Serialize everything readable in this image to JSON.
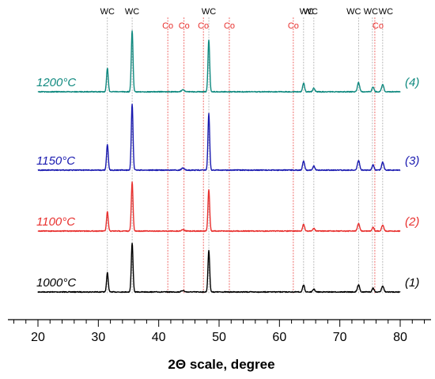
{
  "chart_data": {
    "type": "line",
    "xlabel": "2Θ scale, degree",
    "xlim": [
      18,
      84
    ],
    "x_ticks": [
      20,
      30,
      40,
      50,
      60,
      70,
      80
    ],
    "x_tick_labels": [
      "20",
      "30",
      "40",
      "50",
      "60",
      "70",
      "80"
    ],
    "grid": false,
    "colors": {
      "WC": "#000000",
      "Co": "#e8312f",
      "wc_line": "#a0a0a0",
      "co_line": "#e8312f"
    },
    "peak_markers": [
      {
        "label": "WC",
        "phase": "WC",
        "x": 31.5
      },
      {
        "label": "WC",
        "phase": "WC",
        "x": 35.6
      },
      {
        "label": "Co",
        "phase": "Co",
        "x": 41.5
      },
      {
        "label": "Co",
        "phase": "Co",
        "x": 44.2
      },
      {
        "label": "Co",
        "phase": "Co",
        "x": 47.4
      },
      {
        "label": "WC",
        "phase": "WC",
        "x": 48.3
      },
      {
        "label": "Co",
        "phase": "Co",
        "x": 51.7
      },
      {
        "label": "Co",
        "phase": "Co",
        "x": 62.3
      },
      {
        "label": "WC",
        "phase": "WC",
        "x": 64.0
      },
      {
        "label": "WC",
        "phase": "WC",
        "x": 65.7
      },
      {
        "label": "WC",
        "phase": "WC",
        "x": 73.1
      },
      {
        "label": "WC",
        "phase": "WC",
        "x": 75.4
      },
      {
        "label": "Co",
        "phase": "Co",
        "x": 75.8
      },
      {
        "label": "WC",
        "phase": "WC",
        "x": 77.1
      }
    ],
    "peaks": [
      {
        "x": 31.5,
        "w": 0.22,
        "rel": 0.39
      },
      {
        "x": 35.6,
        "w": 0.22,
        "rel": 1.0
      },
      {
        "x": 44.0,
        "w": 0.35,
        "rel": 0.03
      },
      {
        "x": 48.3,
        "w": 0.22,
        "rel": 0.85
      },
      {
        "x": 64.0,
        "w": 0.25,
        "rel": 0.14
      },
      {
        "x": 65.7,
        "w": 0.25,
        "rel": 0.06
      },
      {
        "x": 73.1,
        "w": 0.28,
        "rel": 0.15
      },
      {
        "x": 75.5,
        "w": 0.25,
        "rel": 0.08
      },
      {
        "x": 77.1,
        "w": 0.28,
        "rel": 0.12
      }
    ],
    "series": [
      {
        "name": "1000°C",
        "number": "(1)",
        "color": "#000000",
        "peak_scale": 1.0
      },
      {
        "name": "1100°C",
        "number": "(2)",
        "color": "#e8312f",
        "peak_scale": 1.0
      },
      {
        "name": "1150°C",
        "number": "(3)",
        "color": "#1a1ab0",
        "peak_scale": 1.35
      },
      {
        "name": "1200°C",
        "number": "(4)",
        "color": "#118a80",
        "peak_scale": 1.25
      }
    ]
  }
}
